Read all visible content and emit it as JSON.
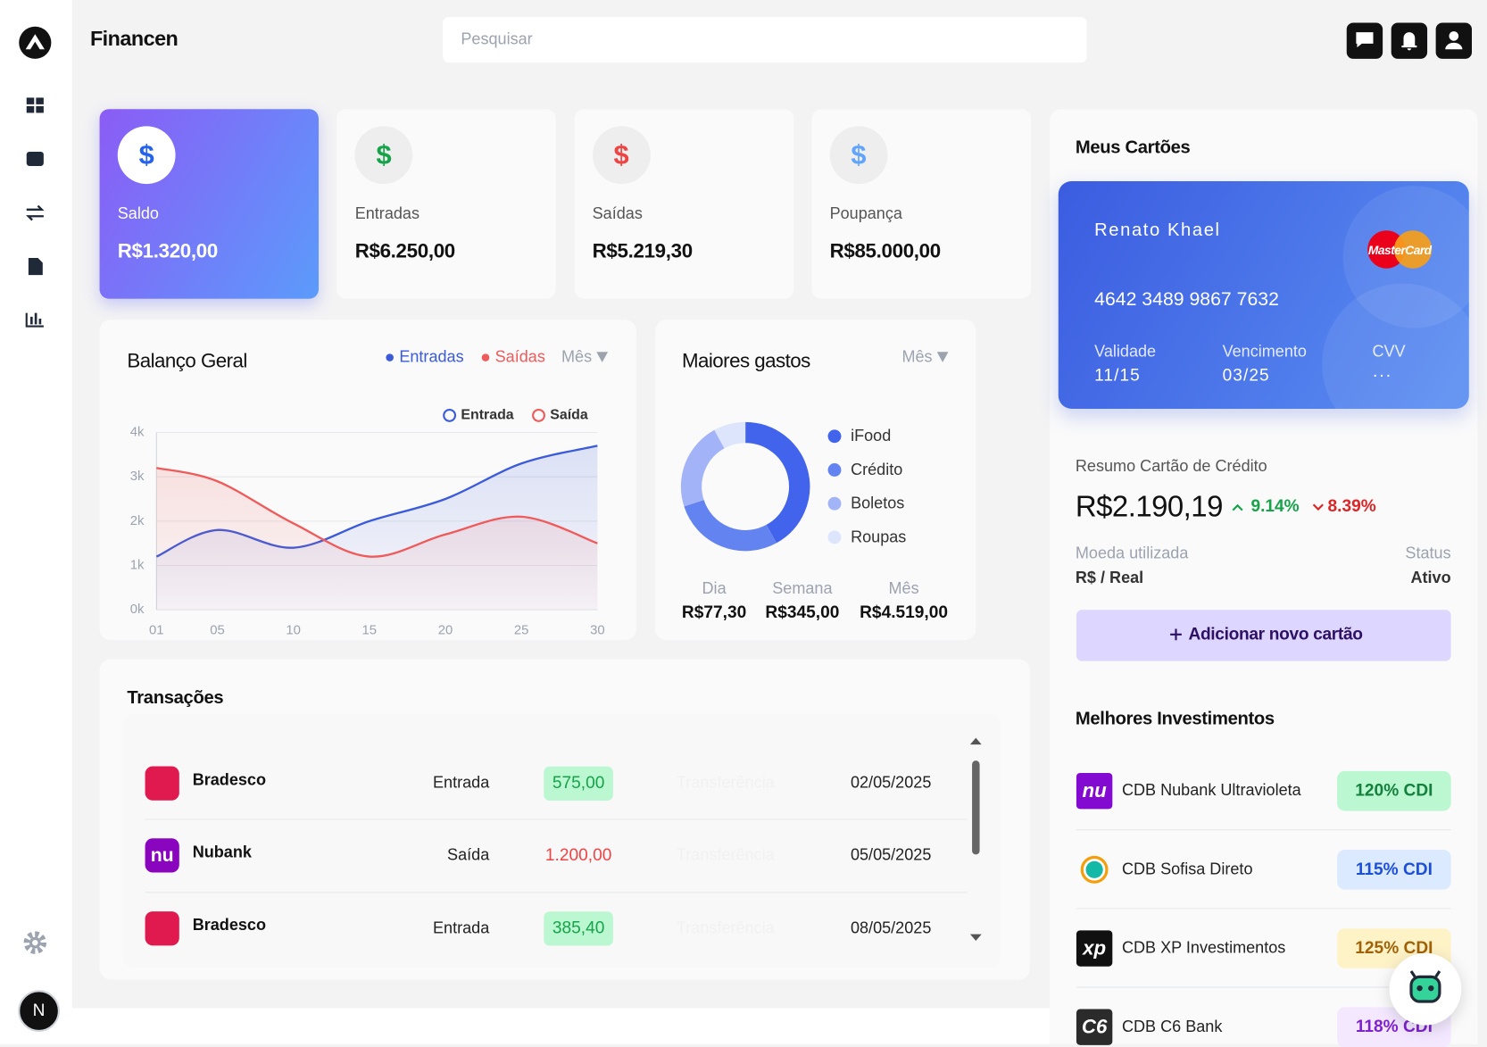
{
  "app": {
    "name": "Financen",
    "search_placeholder": "Pesquisar",
    "currency_icon": "$",
    "avatar": "N"
  },
  "summary_cards": [
    {
      "label": "Saldo",
      "amount": "R$1.320,00",
      "icon_color": "#2563eb"
    },
    {
      "label": "Entradas",
      "amount": "R$6.250,00",
      "icon_color": "#16a34a"
    },
    {
      "label": "Saídas",
      "amount": "R$5.219,30",
      "icon_color": "#ef4444"
    },
    {
      "label": "Poupança",
      "amount": "R$85.000,00",
      "icon_color": "#60a5fa"
    }
  ],
  "balance": {
    "title": "Balanço Geral",
    "legend": [
      "Entradas",
      "Saídas"
    ],
    "period": "Mês",
    "chart_data": {
      "type": "line",
      "x": [
        1,
        5,
        10,
        15,
        20,
        25,
        30
      ],
      "xlim": [
        1,
        30
      ],
      "xticks": [
        {
          "value": 1,
          "label": "01"
        },
        {
          "value": 5,
          "label": "05"
        },
        10,
        15,
        20,
        25,
        30
      ],
      "ylim": [
        0,
        4000
      ],
      "yticks": [
        {
          "value": 0,
          "label": "0k"
        },
        {
          "value": 1000,
          "label": "1k"
        },
        {
          "value": 2000,
          "label": "2k"
        },
        {
          "value": 3000,
          "label": "3k"
        },
        {
          "value": 4000,
          "label": "4k"
        }
      ],
      "grid": true,
      "legend_position": "top-right",
      "series": [
        {
          "name": "Entrada",
          "color": "#3b5bdb",
          "values": [
            1200,
            1800,
            1400,
            2000,
            2500,
            3300,
            3700
          ]
        },
        {
          "name": "Saída",
          "color": "#ef5a5a",
          "values": [
            3200,
            2900,
            1950,
            1200,
            1700,
            2100,
            1500
          ]
        }
      ]
    }
  },
  "spending": {
    "title": "Maiores gastos",
    "period": "Mês",
    "chart_data": {
      "type": "pie",
      "categories": [
        "iFood",
        "Crédito",
        "Boletos",
        "Roupas"
      ],
      "values": [
        42,
        28,
        22,
        8
      ],
      "colors": [
        "#4263eb",
        "#6283f0",
        "#a3b3f8",
        "#dde5fd"
      ]
    },
    "stats": [
      {
        "label": "Dia",
        "amount": "R$77,30"
      },
      {
        "label": "Semana",
        "amount": "R$345,00"
      },
      {
        "label": "Mês",
        "amount": "R$4.519,00"
      }
    ]
  },
  "transactions": {
    "title": "Transações",
    "rows": [
      {
        "bank": "Bradesco",
        "type": "Entrada",
        "amount": "575,00",
        "method": "Transferência",
        "date": "02/05/2025",
        "logo": {
          "color": "#e0194f"
        },
        "amount_color": "#16a34a",
        "amount_bg": "#bbf7d0"
      },
      {
        "bank": "Nubank",
        "type": "Saída",
        "amount": "1.200,00",
        "method": "Transferência",
        "date": "05/05/2025",
        "logo": {
          "color": "#8a05be",
          "text": "nu"
        },
        "amount_color": "#ef4444",
        "amount_bg": "transparent"
      },
      {
        "bank": "Bradesco",
        "type": "Entrada",
        "amount": "385,40",
        "method": "Transferência",
        "date": "08/05/2025",
        "logo": {
          "color": "#e0194f"
        },
        "amount_color": "#16a34a",
        "amount_bg": "#bbf7d0"
      }
    ]
  },
  "cards_panel": {
    "title": "Meus Cartões",
    "card": {
      "holder": "Renato Khael",
      "brand": "MasterCard",
      "number": "4642 3489 9867 7632",
      "fields": [
        {
          "label": "Validade",
          "value": "11/15"
        },
        {
          "label": "Vencimento",
          "value": "03/25"
        },
        {
          "label": "CVV",
          "value": "···"
        }
      ]
    }
  },
  "credit_summary": {
    "title": "Resumo Cartão de Crédito",
    "amount": "R$2.190,19",
    "up": "9.14%",
    "down": "8.39%",
    "currency_label": "Moeda utilizada",
    "currency": "R$ / Real",
    "status_label": "Status",
    "status": "Ativo",
    "button": "Adicionar novo cartão"
  },
  "investments": {
    "title": "Melhores Investimentos",
    "items": [
      {
        "name": "CDB Nubank Ultravioleta",
        "rate": "120% CDI",
        "logo": "nu",
        "logo_bg": "#820ad1",
        "badge_bg": "#bbf7d0",
        "badge_color": "#15803d"
      },
      {
        "name": "CDB Sofisa Direto",
        "rate": "115% CDI",
        "logo_bg": "#f59e0b",
        "badge_bg": "#dbeafe",
        "badge_color": "#1d4ed8"
      },
      {
        "name": "CDB XP Investimentos",
        "rate": "125% CDI",
        "logo": "xp",
        "logo_bg": "#111111",
        "badge_bg": "#fef3c7",
        "badge_color": "#a16207"
      },
      {
        "name": "CDB C6 Bank",
        "rate": "118% CDI",
        "logo": "C6",
        "logo_bg": "#2b2b2b",
        "badge_bg": "#f3e8ff",
        "badge_color": "#7e22ce"
      }
    ]
  }
}
